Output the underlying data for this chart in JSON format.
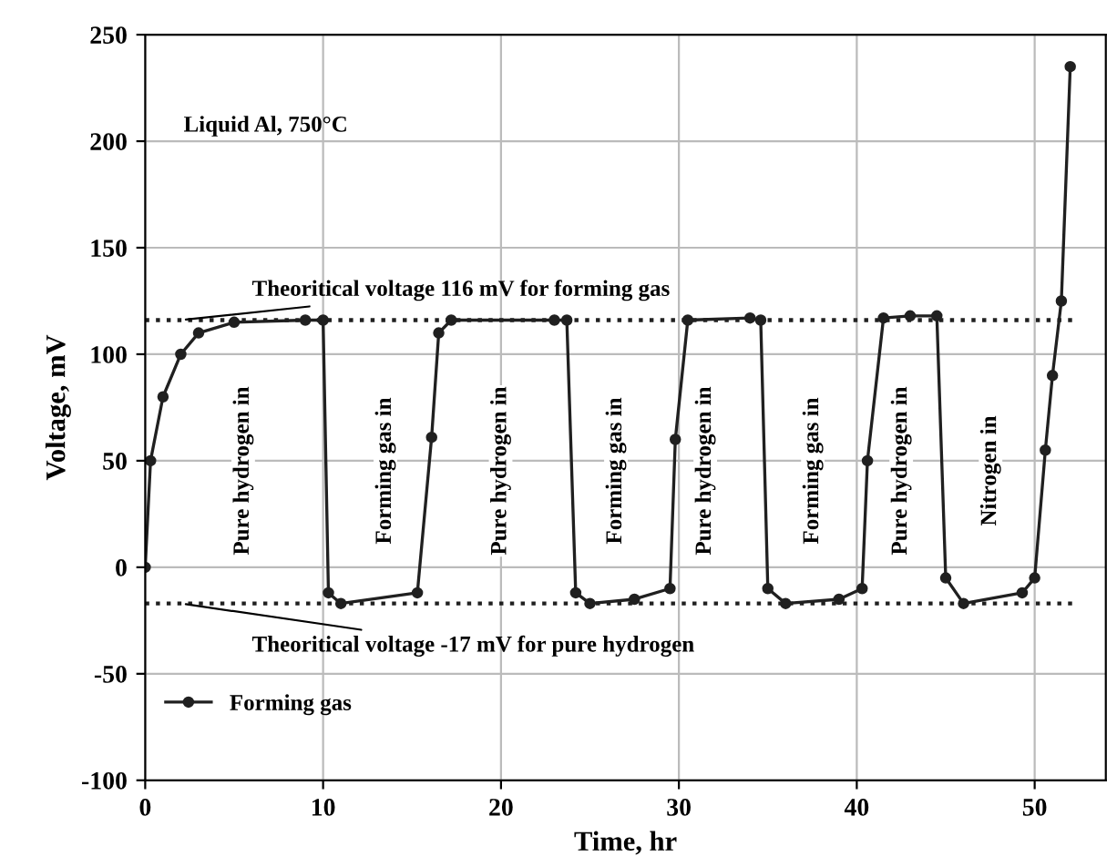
{
  "chart_data": {
    "type": "line",
    "xlabel": "Time, hr",
    "ylabel": "Voltage, mV",
    "xlim": [
      0,
      54
    ],
    "ylim": [
      -100,
      250
    ],
    "xticks": [
      0,
      10,
      20,
      30,
      40,
      50
    ],
    "yticks": [
      -100,
      -50,
      0,
      50,
      100,
      150,
      200,
      250
    ],
    "grid": true,
    "legend": "bottom left",
    "marker": "circle",
    "line_style": "solid",
    "series": [
      {
        "name": "Forming gas",
        "color": "#202020",
        "x": [
          0,
          0.3,
          1,
          2,
          3,
          5,
          9,
          10,
          10.3,
          11,
          15.3,
          16.1,
          16.5,
          17.2,
          23,
          23.7,
          24.2,
          25,
          27.5,
          29.5,
          29.8,
          30.5,
          34,
          34.6,
          35,
          36,
          39,
          40.3,
          40.6,
          41.5,
          43,
          44.5,
          45,
          46,
          49.3,
          50,
          50.6,
          51,
          51.5,
          52
        ],
        "values": [
          0,
          50,
          80,
          100,
          110,
          115,
          116,
          116,
          -12,
          -17,
          -12,
          61,
          110,
          116,
          116,
          116,
          -12,
          -17,
          -15,
          -10,
          60,
          116,
          117,
          116,
          -10,
          -17,
          -15,
          -10,
          50,
          117,
          118,
          118,
          -5,
          -17,
          -12,
          -5,
          55,
          90,
          125,
          235
        ]
      }
    ],
    "ref_lines": [
      {
        "axis": "y",
        "value": 116,
        "label": "Theoritical voltage 116 mV for forming gas",
        "line_style": "dotted",
        "color": "#202020"
      },
      {
        "axis": "y",
        "value": -17,
        "label": "Theoritical voltage -17 mV for pure hydrogen",
        "line_style": "dotted",
        "color": "#202020"
      }
    ],
    "annotations": [
      "Liquid Al, 750°C",
      "Pure hydrogen in",
      "Forming gas in",
      "Pure hydrogen in",
      "Forming gas in",
      "Pure hydrogen in",
      "Forming gas in",
      "Pure hydrogen in",
      "Nitrogen in"
    ]
  }
}
